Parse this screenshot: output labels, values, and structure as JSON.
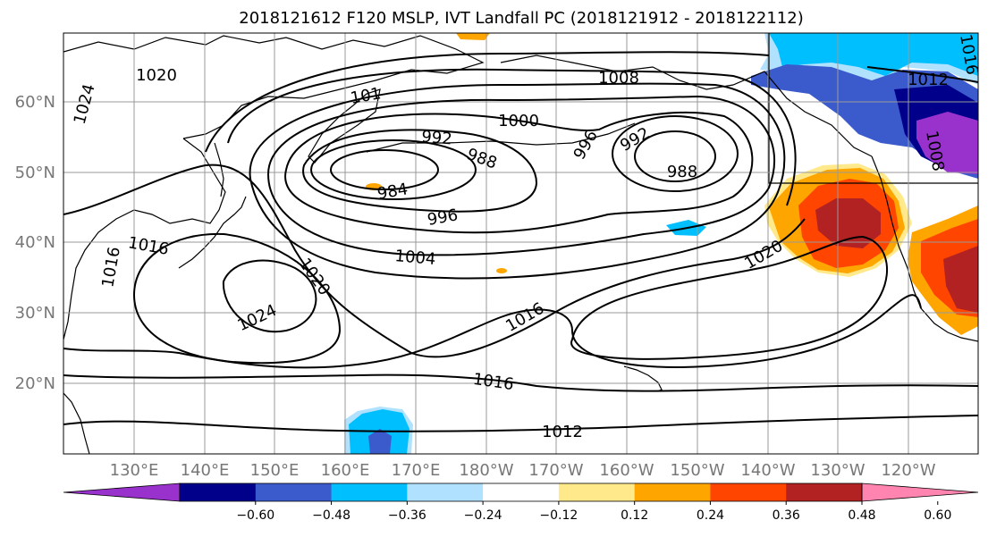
{
  "title": "2018121612 F120 MSLP, IVT Landfall PC (2018121912 - 2018122112)",
  "lat_labels": [
    "60°N",
    "50°N",
    "40°N",
    "30°N",
    "20°N"
  ],
  "lon_labels": [
    "130°E",
    "140°E",
    "150°E",
    "160°E",
    "170°E",
    "180°W",
    "170°W",
    "160°W",
    "150°W",
    "140°W",
    "130°W",
    "120°W"
  ],
  "contour_labels": [
    {
      "text": "1020"
    },
    {
      "text": "1024"
    },
    {
      "text": "1008"
    },
    {
      "text": "1012"
    },
    {
      "text": "1016"
    },
    {
      "text": "1000"
    },
    {
      "text": "992"
    },
    {
      "text": "988"
    },
    {
      "text": "984"
    },
    {
      "text": "996"
    },
    {
      "text": "992"
    },
    {
      "text": "988"
    },
    {
      "text": "1004"
    },
    {
      "text": "1016"
    },
    {
      "text": "1020"
    },
    {
      "text": "1024"
    },
    {
      "text": "1016"
    },
    {
      "text": "1020"
    },
    {
      "text": "1016"
    },
    {
      "text": "1016"
    },
    {
      "text": "1012"
    },
    {
      "text": "996"
    },
    {
      "text": "101"
    },
    {
      "text": "1008"
    }
  ],
  "colorbar": {
    "colors": [
      "#9932CC",
      "#00008B",
      "#3B5BCC",
      "#00BFFF",
      "#B0E2FF",
      "#FFFFFF",
      "#FFE98A",
      "#FFA500",
      "#FF4500",
      "#B22222",
      "#FF85B0"
    ],
    "ticks": [
      "−0.60",
      "−0.48",
      "−0.36",
      "−0.24",
      "−0.12",
      "0.12",
      "0.24",
      "0.36",
      "0.48",
      "0.60"
    ]
  },
  "chart_data": {
    "type": "map",
    "title": "2018121612 F120 MSLP, IVT Landfall PC (2018121912 - 2018122112)",
    "projection": "cylindrical",
    "lon_range": [
      "120°E",
      "115°W"
    ],
    "lat_range": [
      10,
      70
    ],
    "contour_field": "MSLP (hPa)",
    "contour_interval": 4,
    "contour_levels_labeled": [
      984,
      988,
      992,
      996,
      1000,
      1004,
      1008,
      1012,
      1016,
      1020,
      1024
    ],
    "lows": [
      {
        "value": 984,
        "near": "50°N 170°E"
      },
      {
        "value": 988,
        "near": "50°N 150°W"
      }
    ],
    "highs": [
      {
        "value": 1024,
        "near": "32°N 145°E"
      }
    ],
    "shaded_field": "IVT Landfall PC",
    "colorbar_levels": [
      -0.6,
      -0.48,
      -0.36,
      -0.24,
      -0.12,
      0.12,
      0.24,
      0.36,
      0.48,
      0.6
    ],
    "grid": true
  }
}
